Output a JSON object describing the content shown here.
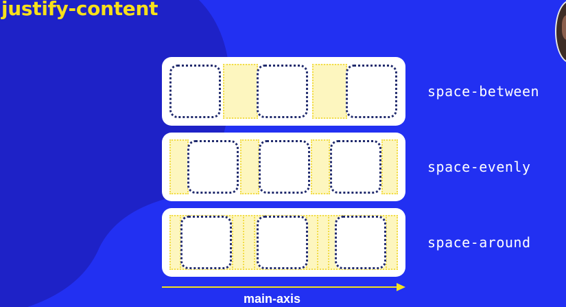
{
  "slide": {
    "title": "justify-content",
    "axis_label": "main-axis"
  },
  "rows": [
    {
      "label": "space-between"
    },
    {
      "label": "space-evenly"
    },
    {
      "label": "space-around"
    }
  ],
  "colors": {
    "background": "#2230f2",
    "background_shape": "#1e22c7",
    "title": "#f7e01a",
    "gap_fill": "#fdf6bf",
    "item_border": "#202a6c",
    "axis": "#f4e21e"
  },
  "icons": {
    "avatar": "presenter-avatar",
    "axis": "right-arrow-icon"
  }
}
